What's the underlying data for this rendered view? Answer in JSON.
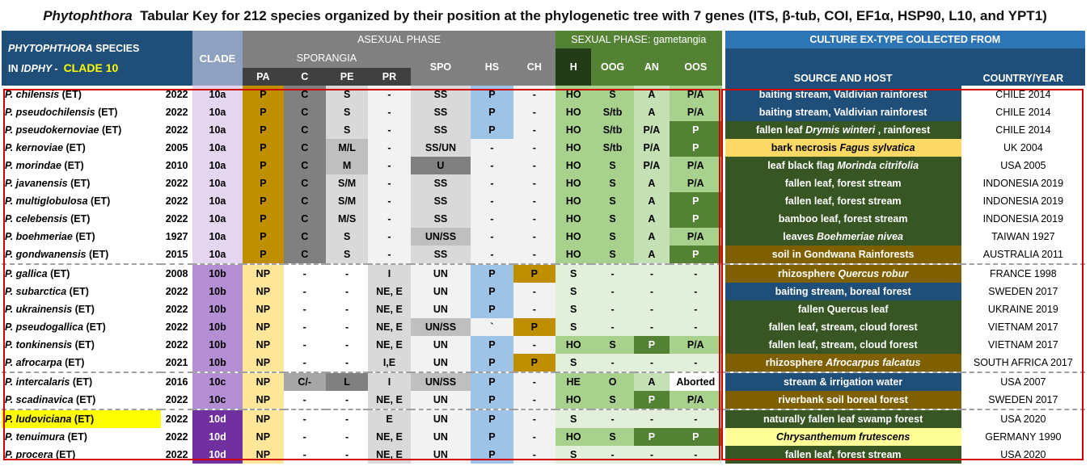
{
  "title": {
    "genus": "Phytophthora",
    "rest": "Tabular Key for 212 species organized by their position at the phylogenetic tree with 7 genes (ITS, β-tub, COI, EF1α, HSP90, L10, and YPT1)"
  },
  "headers": {
    "species_line1_a": "PHYTOPHTHORA",
    "species_line1_b": "SPECIES",
    "species_line2_a": "IN",
    "species_line2_b": "IDPHY -",
    "species_line2_c": "CLADE 10",
    "clade": "CLADE",
    "asexual": "ASEXUAL PHASE",
    "sexual": "SEXUAL PHASE: gametangia",
    "culture": "CULTURE EX-TYPE COLLECTED FROM",
    "sporangia": "SPORANGIA",
    "spo": "SPO",
    "hs": "HS",
    "ch": "CH",
    "h": "H",
    "oog": "OOG",
    "an": "AN",
    "oos": "OOS",
    "source": "SOURCE AND HOST",
    "country": "COUNTRY/YEAR",
    "pa": "PA",
    "c": "C",
    "pe": "PE",
    "pr": "PR"
  },
  "rows": [
    {
      "name": "P. chilensis",
      "suffix": " (ET)",
      "year": "2022",
      "clade": "10a",
      "pa": "P",
      "c": "C",
      "pe": "S",
      "pr": "-",
      "spo": "SS",
      "hs": "P",
      "ch": "-",
      "h": "HO",
      "oog": "S",
      "an": "A",
      "oos": "P/A",
      "src1": "baiting stream, Valdivian rainforest",
      "src2": "",
      "country": "CHILE 2014"
    },
    {
      "name": "P. pseudochilensis",
      "suffix": " (ET)",
      "year": "2022",
      "clade": "10a",
      "pa": "P",
      "c": "C",
      "pe": "S",
      "pr": "-",
      "spo": "SS",
      "hs": "P",
      "ch": "-",
      "h": "HO",
      "oog": "S/tb",
      "an": "A",
      "oos": "P/A",
      "src1": "baiting stream, Valdivian rainforest",
      "src2": "",
      "country": "CHILE 2014"
    },
    {
      "name": "P. pseudokernoviae",
      "suffix": " (ET)",
      "year": "2022",
      "clade": "10a",
      "pa": "P",
      "c": "C",
      "pe": "S",
      "pr": "-",
      "spo": "SS",
      "hs": "P",
      "ch": "-",
      "h": "HO",
      "oog": "S/tb",
      "an": "P/A",
      "oos": "P",
      "src1": "fallen leaf ",
      "src2": "Drymis winteri",
      "src3": " , rainforest",
      "country": "CHILE 2014"
    },
    {
      "name": "P. kernoviae",
      "suffix": " (ET)",
      "year": "2005",
      "clade": "10a",
      "pa": "P",
      "c": "C",
      "pe": "M/L",
      "pr": "-",
      "spo": "SS/UN",
      "hs": "-",
      "ch": "-",
      "h": "HO",
      "oog": "S/tb",
      "an": "P/A",
      "oos": "P",
      "src1": "bark necrosis ",
      "src2": "Fagus sylvatica",
      "src3": "",
      "country": "UK 2004"
    },
    {
      "name": "P. morindae",
      "suffix": " (ET)",
      "year": "2010",
      "clade": "10a",
      "pa": "P",
      "c": "C",
      "pe": "M",
      "pr": "-",
      "spo": "U",
      "hs": "-",
      "ch": "-",
      "h": "HO",
      "oog": "S",
      "an": "P/A",
      "oos": "P/A",
      "src1": "leaf black flag ",
      "src2": "Morinda citrifolia",
      "src3": "",
      "country": "USA 2005"
    },
    {
      "name": "P. javanensis",
      "suffix": " (ET)",
      "year": "2022",
      "clade": "10a",
      "pa": "P",
      "c": "C",
      "pe": "S/M",
      "pr": "-",
      "spo": "SS",
      "hs": "-",
      "ch": "-",
      "h": "HO",
      "oog": "S",
      "an": "A",
      "oos": "P/A",
      "src1": "fallen leaf, forest stream",
      "src2": "",
      "country": "INDONESIA 2019"
    },
    {
      "name": "P. multiglobulosa",
      "suffix": " (ET)",
      "year": "2022",
      "clade": "10a",
      "pa": "P",
      "c": "C",
      "pe": "S/M",
      "pr": "-",
      "spo": "SS",
      "hs": "-",
      "ch": "-",
      "h": "HO",
      "oog": "S",
      "an": "A",
      "oos": "P",
      "src1": "fallen leaf, forest stream",
      "src2": "",
      "country": "INDONESIA 2019"
    },
    {
      "name": "P. celebensis",
      "suffix": " (ET)",
      "year": "2022",
      "clade": "10a",
      "pa": "P",
      "c": "C",
      "pe": "M/S",
      "pr": "-",
      "spo": "SS",
      "hs": "-",
      "ch": "-",
      "h": "HO",
      "oog": "S",
      "an": "A",
      "oos": "P",
      "src1": "bamboo leaf, forest stream",
      "src2": "",
      "country": "INDONESIA 2019"
    },
    {
      "name": "P. boehmeriae",
      "suffix": " (ET)",
      "year": "1927",
      "clade": "10a",
      "pa": "P",
      "c": "C",
      "pe": "S",
      "pr": "-",
      "spo": "UN/SS",
      "hs": "-",
      "ch": "-",
      "h": "HO",
      "oog": "S",
      "an": "A",
      "oos": "P/A",
      "src1": "leaves ",
      "src2": "Boehmeriae nivea",
      "src3": "",
      "country": "TAIWAN 1927"
    },
    {
      "name": "P. gondwanensis",
      "suffix": " (ET)",
      "year": "2015",
      "clade": "10a",
      "pa": "P",
      "c": "C",
      "pe": "S",
      "pr": "-",
      "spo": "SS",
      "hs": "-",
      "ch": "-",
      "h": "HO",
      "oog": "S",
      "an": "A",
      "oos": "P",
      "src1": "soil in Gondwana Rainforests",
      "src2": "",
      "country": "AUSTRALIA 2011"
    },
    {
      "name": "P. gallica",
      "suffix": " (ET)",
      "year": "2008",
      "clade": "10b",
      "pa": "NP",
      "c": "-",
      "pe": "-",
      "pr": "I",
      "spo": "UN",
      "hs": "P",
      "ch": "P",
      "h": "S",
      "oog": "-",
      "an": "-",
      "oos": "-",
      "src1": "rhizosphere ",
      "src2": "Quercus robur",
      "src3": "",
      "country": "FRANCE 1998"
    },
    {
      "name": "P. subarctica",
      "suffix": " (ET)",
      "year": "2022",
      "clade": "10b",
      "pa": "NP",
      "c": "-",
      "pe": "-",
      "pr": "NE, E",
      "spo": "UN",
      "hs": "P",
      "ch": "-",
      "h": "S",
      "oog": "-",
      "an": "-",
      "oos": "-",
      "src1": "baiting stream, boreal forest",
      "src2": "",
      "country": "SWEDEN 2017"
    },
    {
      "name": "P. ukrainensis",
      "suffix": " (ET)",
      "year": "2022",
      "clade": "10b",
      "pa": "NP",
      "c": "-",
      "pe": "-",
      "pr": "NE, E",
      "spo": "UN",
      "hs": "P",
      "ch": "-",
      "h": "S",
      "oog": "-",
      "an": "-",
      "oos": "-",
      "src1": "fallen Quercus leaf",
      "src2": "",
      "country": "UKRAINE 2019"
    },
    {
      "name": "P. pseudogallica",
      "suffix": " (ET)",
      "year": "2022",
      "clade": "10b",
      "pa": "NP",
      "c": "-",
      "pe": "-",
      "pr": "NE, E",
      "spo": "UN/SS",
      "hs": "`",
      "ch": "P",
      "h": "S",
      "oog": "-",
      "an": "-",
      "oos": "-",
      "src1": "fallen leaf, stream, cloud forest",
      "src2": "",
      "country": "VIETNAM 2017"
    },
    {
      "name": "P. tonkinensis",
      "suffix": " (ET)",
      "year": "2022",
      "clade": "10b",
      "pa": "NP",
      "c": "-",
      "pe": "-",
      "pr": "NE, E",
      "spo": "UN",
      "hs": "P",
      "ch": "-",
      "h": "HO",
      "oog": "S",
      "an": "P",
      "oos": "P/A",
      "src1": "fallen leaf, stream, cloud forest",
      "src2": "",
      "country": "VIETNAM 2017"
    },
    {
      "name": "P. afrocarpa",
      "suffix": " (ET)",
      "year": "2021",
      "clade": "10b",
      "pa": "NP",
      "c": "-",
      "pe": "-",
      "pr": "I,E",
      "spo": "UN",
      "hs": "P",
      "ch": "P",
      "h": "S",
      "oog": "-",
      "an": "-",
      "oos": "-",
      "src1": "rhizosphere ",
      "src2": "Afrocarpus falcatus",
      "src3": "",
      "country": "SOUTH AFRICA 2017"
    },
    {
      "name": "P. intercalaris",
      "suffix": " (ET)",
      "year": "2016",
      "clade": "10c",
      "pa": "NP",
      "c": "C/-",
      "pe": "L",
      "pr": "I",
      "spo": "UN/SS",
      "hs": "P",
      "ch": "-",
      "h": "HE",
      "oog": "O",
      "an": "A",
      "oos": "Aborted",
      "src1": "stream & irrigation water",
      "src2": "",
      "country": "USA 2007"
    },
    {
      "name": "P. scadinavica",
      "suffix": " (ET)",
      "year": "2022",
      "clade": "10c",
      "pa": "NP",
      "c": "-",
      "pe": "-",
      "pr": "NE, E",
      "spo": "UN",
      "hs": "P",
      "ch": "-",
      "h": "HO",
      "oog": "S",
      "an": "P",
      "oos": "P/A",
      "src1": "riverbank soil boreal forest",
      "src2": "",
      "country": "SWEDEN 2017"
    },
    {
      "name": "P. ludoviciana",
      "suffix": " (ET)",
      "year": "2022",
      "clade": "10d",
      "pa": "NP",
      "c": "-",
      "pe": "-",
      "pr": "E",
      "spo": "UN",
      "hs": "P",
      "ch": "-",
      "h": "S",
      "oog": "-",
      "an": "-",
      "oos": "-",
      "src1": "naturally fallen leaf swamp forest",
      "src2": "",
      "country": "USA 2020"
    },
    {
      "name": "P. tenuimura",
      "suffix": " (ET)",
      "year": "2022",
      "clade": "10d",
      "pa": "NP",
      "c": "-",
      "pe": "-",
      "pr": "NE, E",
      "spo": "UN",
      "hs": "P",
      "ch": "-",
      "h": "HO",
      "oog": "S",
      "an": "P",
      "oos": "P",
      "src1": "",
      "src2": "Chrysanthemum frutescens",
      "src3": "",
      "country": "GERMANY 1990"
    },
    {
      "name": "P. procera",
      "suffix": " (ET)",
      "year": "2022",
      "clade": "10d",
      "pa": "NP",
      "c": "-",
      "pe": "-",
      "pr": "NE, E",
      "spo": "UN",
      "hs": "P",
      "ch": "-",
      "h": "S",
      "oog": "-",
      "an": "-",
      "oos": "-",
      "src1": "fallen leaf, forest stream",
      "src2": "",
      "country": "USA 2020"
    }
  ]
}
